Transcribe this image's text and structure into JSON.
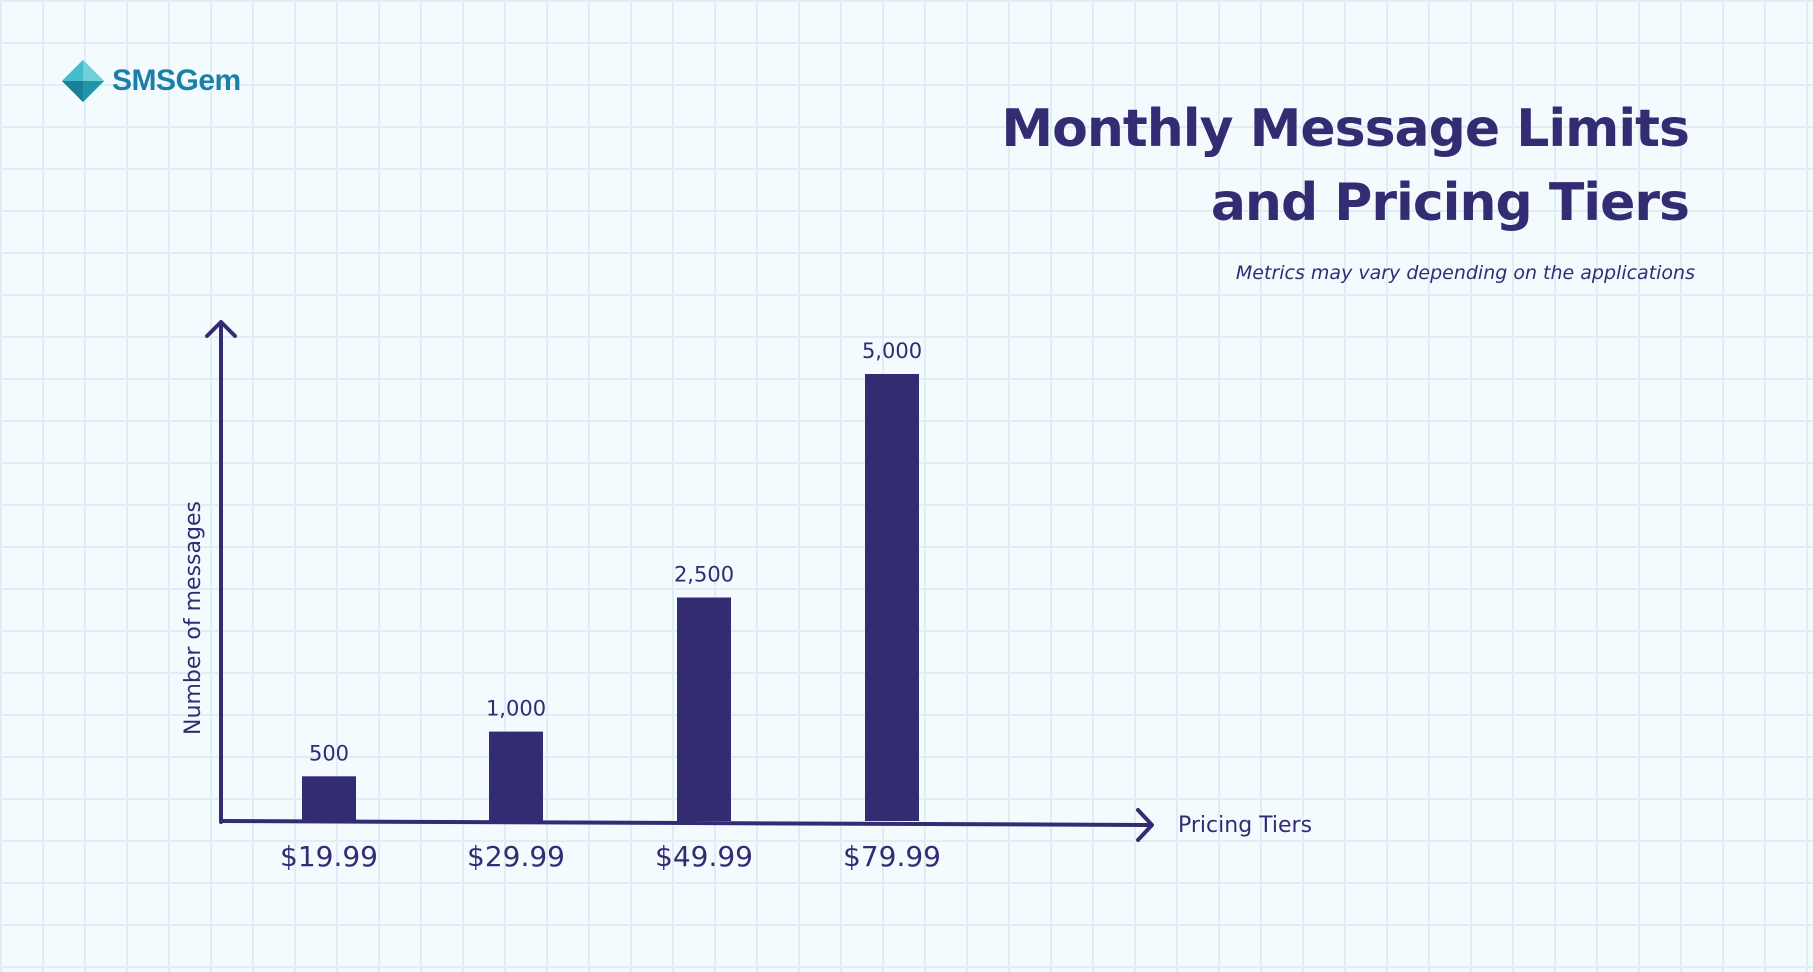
{
  "brand": {
    "name": "SMSGem",
    "logo_icon": "diamond-gem-icon",
    "color": "#1c7fa8"
  },
  "header": {
    "title_line1": "Monthly Message Limits",
    "title_line2": "and Pricing Tiers",
    "subtitle": "Metrics may vary depending on the applications"
  },
  "colors": {
    "background": "#f3fbff",
    "grid": "#dfeef3",
    "primary": "#342c73"
  },
  "chart_data": {
    "type": "bar",
    "categories": [
      "$19.99",
      "$29.99",
      "$49.99",
      "$79.99"
    ],
    "values": [
      500,
      1000,
      2500,
      5000
    ],
    "value_labels": [
      "500",
      "1,000",
      "2,500",
      "5,000"
    ],
    "xlabel": "Pricing Tiers",
    "ylabel": "Number of messages",
    "ylim": [
      0,
      5000
    ],
    "grid": false,
    "bar_color": "#342c73"
  }
}
